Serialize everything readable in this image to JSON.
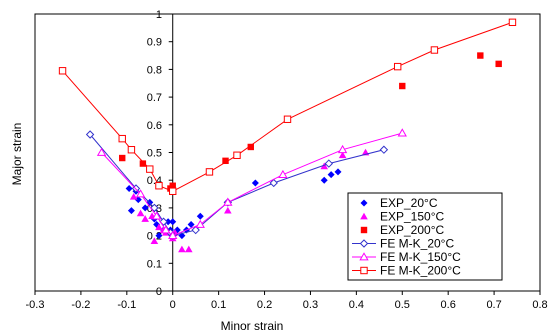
{
  "chart_data": {
    "type": "scatter",
    "xlabel": "Minor strain",
    "ylabel": "Major strain",
    "xlim": [
      -0.3,
      0.8
    ],
    "ylim": [
      0,
      1
    ],
    "x_ticks": [
      -0.3,
      -0.2,
      -0.1,
      0,
      0.1,
      0.2,
      0.3,
      0.4,
      0.5,
      0.6,
      0.7,
      0.8
    ],
    "y_ticks": [
      0,
      0.1,
      0.2,
      0.3,
      0.4,
      0.5,
      0.6,
      0.7,
      0.8,
      0.9,
      1
    ],
    "x_tick_labels": [
      "-0.3",
      "-0.2",
      "-0.1",
      "0",
      "0.1",
      "0.2",
      "0.3",
      "0.4",
      "0.5",
      "0.6",
      "0.7",
      "0.8"
    ],
    "y_tick_labels": [
      "0",
      "0.1",
      "0.2",
      "0.3",
      "0.4",
      "0.5",
      "0.6",
      "0.7",
      "0.8",
      "0.9",
      "1"
    ],
    "grid": false,
    "legend_position": "bottom-right",
    "series": [
      {
        "name": "EXP_20°C",
        "kind": "scatter",
        "marker": "diamond",
        "color": "#0000ff",
        "points": [
          [
            -0.095,
            0.37
          ],
          [
            -0.09,
            0.29
          ],
          [
            -0.08,
            0.36
          ],
          [
            -0.075,
            0.33
          ],
          [
            -0.06,
            0.3
          ],
          [
            -0.05,
            0.32
          ],
          [
            -0.04,
            0.26
          ],
          [
            -0.035,
            0.24
          ],
          [
            -0.03,
            0.2
          ],
          [
            -0.02,
            0.22
          ],
          [
            -0.01,
            0.25
          ],
          [
            -0.005,
            0.22
          ],
          [
            0.0,
            0.25
          ],
          [
            0.01,
            0.22
          ],
          [
            0.02,
            0.2
          ],
          [
            0.03,
            0.22
          ],
          [
            0.04,
            0.24
          ],
          [
            0.06,
            0.27
          ],
          [
            0.18,
            0.39
          ],
          [
            0.33,
            0.4
          ],
          [
            0.345,
            0.42
          ],
          [
            0.36,
            0.43
          ]
        ]
      },
      {
        "name": "EXP_150°C",
        "kind": "scatter",
        "marker": "triangle",
        "color": "#ff00ff",
        "points": [
          [
            -0.085,
            0.34
          ],
          [
            -0.07,
            0.28
          ],
          [
            -0.06,
            0.26
          ],
          [
            -0.045,
            0.27
          ],
          [
            -0.04,
            0.18
          ],
          [
            -0.03,
            0.23
          ],
          [
            -0.02,
            0.22
          ],
          [
            -0.015,
            0.21
          ],
          [
            0.0,
            0.19
          ],
          [
            0.005,
            0.21
          ],
          [
            0.02,
            0.15
          ],
          [
            0.035,
            0.15
          ],
          [
            0.12,
            0.29
          ],
          [
            0.33,
            0.45
          ],
          [
            0.37,
            0.49
          ],
          [
            0.42,
            0.5
          ]
        ]
      },
      {
        "name": "EXP_200°C",
        "kind": "scatter",
        "marker": "square",
        "color": "#ff0000",
        "points": [
          [
            -0.11,
            0.48
          ],
          [
            -0.065,
            0.46
          ],
          [
            -0.005,
            0.37
          ],
          [
            0.0,
            0.38
          ],
          [
            0.115,
            0.47
          ],
          [
            0.17,
            0.52
          ],
          [
            0.5,
            0.74
          ],
          [
            0.67,
            0.85
          ],
          [
            0.71,
            0.82
          ]
        ]
      },
      {
        "name": "FE M-K_20°C",
        "kind": "line",
        "marker": "open-diamond",
        "color": "#3333cc",
        "points": [
          [
            -0.18,
            0.565
          ],
          [
            -0.08,
            0.37
          ],
          [
            -0.04,
            0.3
          ],
          [
            -0.02,
            0.25
          ],
          [
            -0.005,
            0.21
          ],
          [
            0.0,
            0.2
          ],
          [
            0.05,
            0.22
          ],
          [
            0.12,
            0.32
          ],
          [
            0.22,
            0.39
          ],
          [
            0.34,
            0.46
          ],
          [
            0.46,
            0.51
          ]
        ]
      },
      {
        "name": "FE M-K_150°C",
        "kind": "line",
        "marker": "open-triangle",
        "color": "#ff00ff",
        "points": [
          [
            -0.155,
            0.5
          ],
          [
            -0.07,
            0.35
          ],
          [
            -0.035,
            0.27
          ],
          [
            -0.015,
            0.22
          ],
          [
            0.0,
            0.2
          ],
          [
            0.06,
            0.24
          ],
          [
            0.12,
            0.32
          ],
          [
            0.24,
            0.42
          ],
          [
            0.37,
            0.51
          ],
          [
            0.5,
            0.57
          ]
        ]
      },
      {
        "name": "FE M-K_200°C",
        "kind": "line",
        "marker": "open-square",
        "color": "#ff0000",
        "points": [
          [
            -0.24,
            0.795
          ],
          [
            -0.11,
            0.55
          ],
          [
            -0.09,
            0.51
          ],
          [
            -0.05,
            0.44
          ],
          [
            -0.03,
            0.38
          ],
          [
            0.0,
            0.36
          ],
          [
            0.08,
            0.43
          ],
          [
            0.14,
            0.49
          ],
          [
            0.25,
            0.62
          ],
          [
            0.49,
            0.81
          ],
          [
            0.57,
            0.87
          ],
          [
            0.74,
            0.97
          ]
        ]
      }
    ]
  }
}
